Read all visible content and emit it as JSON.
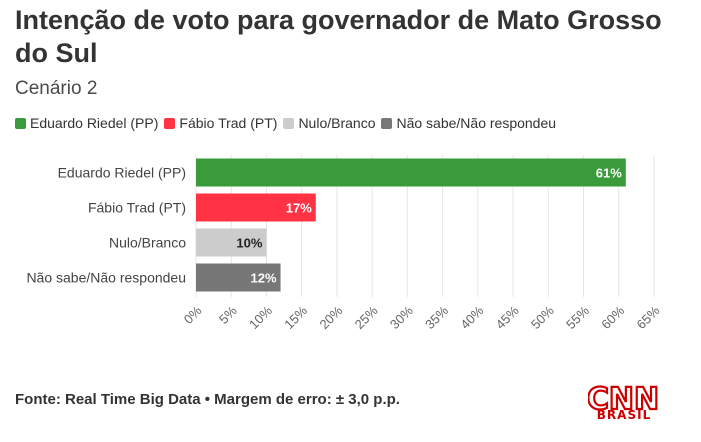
{
  "header": {
    "title": "Intenção de voto para governador de Mato Grosso do Sul",
    "subtitle": "Cenário 2"
  },
  "legend": [
    {
      "label": "Eduardo Riedel (PP)",
      "color": "#3a9b3a"
    },
    {
      "label": "Fábio Trad (PT)",
      "color": "#ff3344"
    },
    {
      "label": "Nulo/Branco",
      "color": "#cccccc"
    },
    {
      "label": "Não sabe/Não respondeu",
      "color": "#777777"
    }
  ],
  "chart_data": {
    "type": "bar",
    "orientation": "horizontal",
    "categories": [
      "Eduardo Riedel (PP)",
      "Fábio Trad (PT)",
      "Nulo/Branco",
      "Não sabe/Não respondeu"
    ],
    "values": [
      61,
      17,
      10,
      12
    ],
    "value_labels": [
      "61%",
      "17%",
      "10%",
      "12%"
    ],
    "colors": [
      "#3a9b3a",
      "#ff3344",
      "#cccccc",
      "#777777"
    ],
    "label_colors": [
      "#ffffff",
      "#ffffff",
      "#222222",
      "#ffffff"
    ],
    "xlim": [
      0,
      65
    ],
    "ticks": [
      0,
      5,
      10,
      15,
      20,
      25,
      30,
      35,
      40,
      45,
      50,
      55,
      60,
      65
    ],
    "tick_labels": [
      "0%",
      "5%",
      "10%",
      "15%",
      "20%",
      "25%",
      "30%",
      "35%",
      "40%",
      "45%",
      "50%",
      "55%",
      "60%",
      "65%"
    ],
    "grid": true,
    "legend_position": "top-left"
  },
  "footer": {
    "source": "Fonte: Real Time Big Data • Margem de erro: ± 3,0 p.p."
  },
  "logo": {
    "brand": "CNN",
    "region": "BRASIL"
  }
}
